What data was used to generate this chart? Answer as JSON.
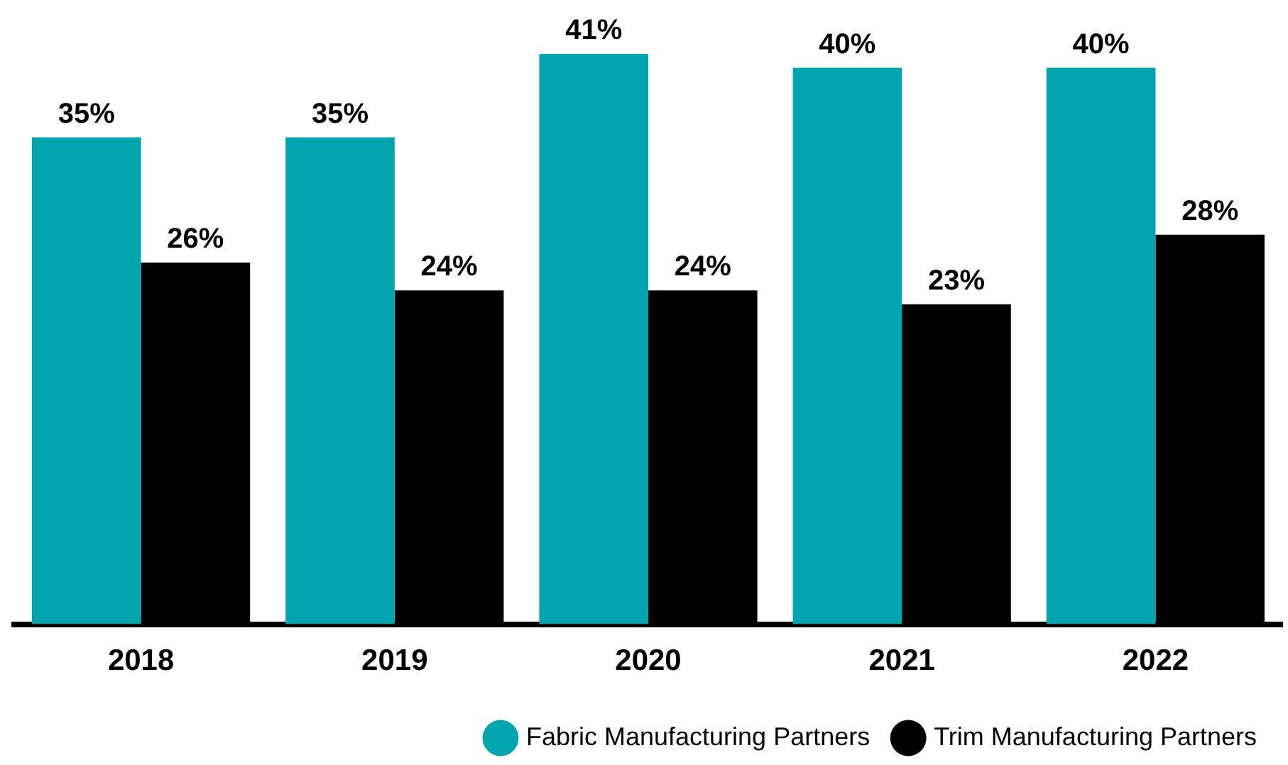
{
  "chart_data": {
    "type": "bar",
    "categories": [
      "2018",
      "2019",
      "2020",
      "2021",
      "2022"
    ],
    "series": [
      {
        "name": "Fabric Manufacturing Partners",
        "color": "#00a5b0",
        "values": [
          35,
          35,
          41,
          40,
          40
        ],
        "value_labels": [
          "35%",
          "35%",
          "41%",
          "40%",
          "40%"
        ]
      },
      {
        "name": "Trim Manufacturing Partners",
        "color": "#000000",
        "values": [
          26,
          24,
          24,
          23,
          28
        ],
        "value_labels": [
          "26%",
          "24%",
          "24%",
          "23%",
          "28%"
        ]
      }
    ],
    "legend": "bottom right",
    "grid": false
  }
}
